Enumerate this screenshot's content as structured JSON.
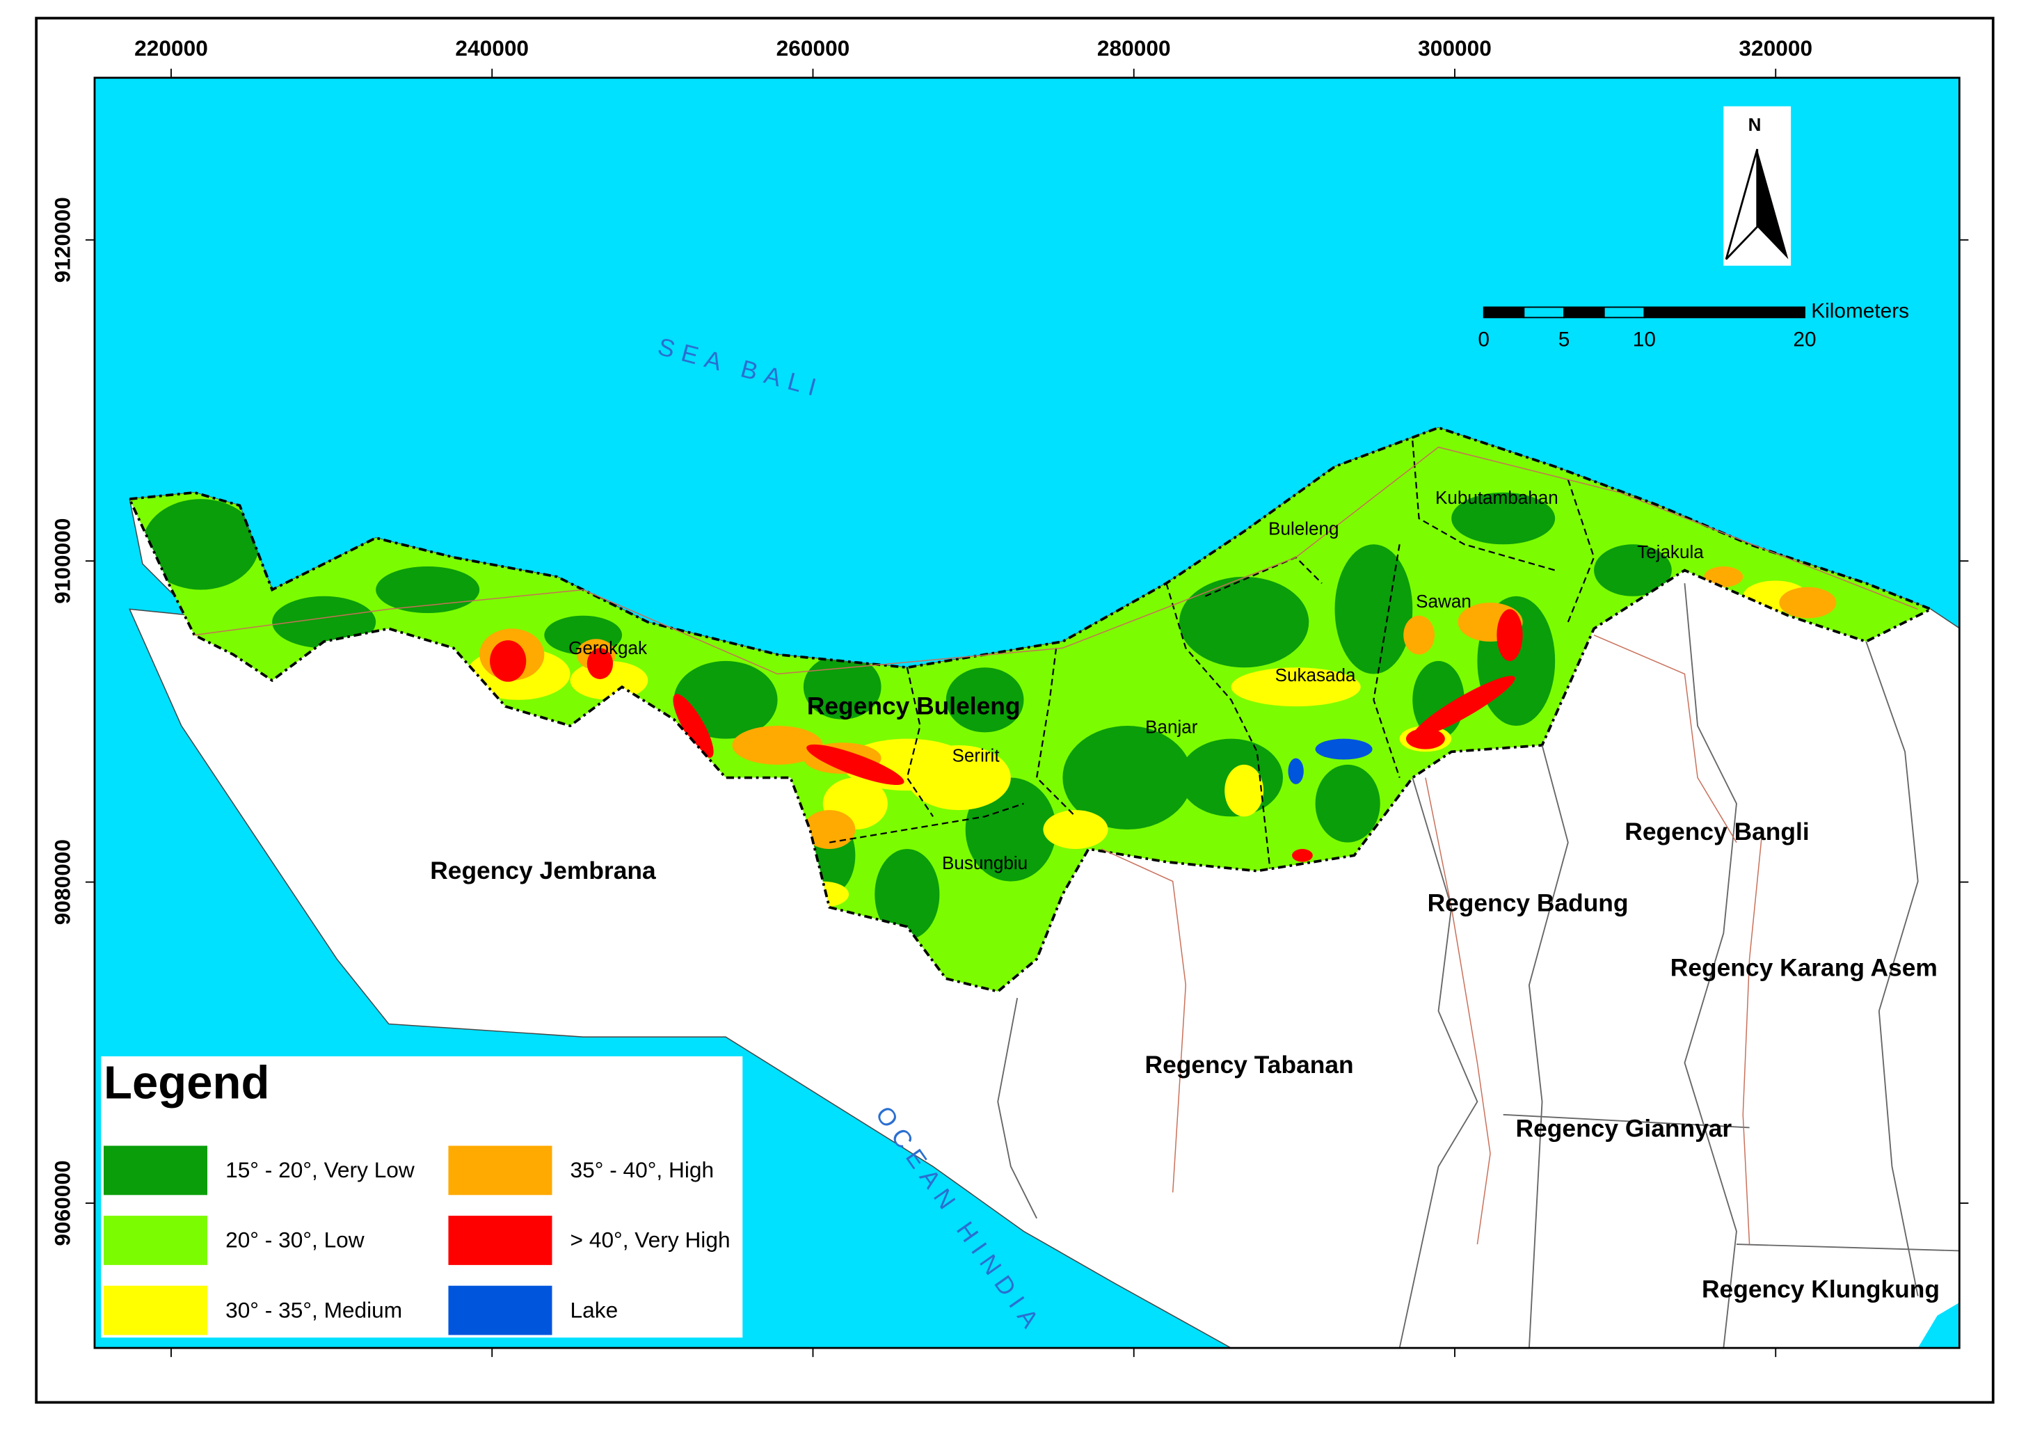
{
  "axes": {
    "xlim": [
      215230,
      331450
    ],
    "ylim": [
      9050980,
      9130100
    ],
    "xticks": [
      220000,
      240000,
      260000,
      280000,
      300000,
      320000
    ],
    "yticks": [
      9060000,
      9080000,
      9100000,
      9120000
    ]
  },
  "sea_labels": [
    "SEA BALI",
    "OCEAN HINDIA"
  ],
  "regions": [
    "Regency Buleleng",
    "Regency Jembrana",
    "Regency Tabanan",
    "Regency Badung",
    "Regency Bangli",
    "Regency Karang Asem",
    "Regency Giannyar",
    "Regency Klungkung"
  ],
  "districts": [
    "Gerokgak",
    "Seririt",
    "Busungbiu",
    "Banjar",
    "Buleleng",
    "Sukasada",
    "Sawan",
    "Kubutambahan",
    "Tejakula"
  ],
  "legend": {
    "title": "Legend",
    "items": [
      {
        "label": "15° - 20°, Very Low",
        "color": "#0a9e0a"
      },
      {
        "label": "20° - 30°, Low",
        "color": "#7cfc00"
      },
      {
        "label": "30° - 35°, Medium",
        "color": "#ffff00"
      },
      {
        "label": "35° - 40°, High",
        "color": "#ffaa00"
      },
      {
        "label": "> 40°, Very High",
        "color": "#ff0000"
      },
      {
        "label": "Lake",
        "color": "#0055dd"
      }
    ]
  },
  "scale_bar": {
    "unit": "Kilometers",
    "ticks": [
      0,
      5,
      10,
      20
    ]
  },
  "north_arrow": "N"
}
